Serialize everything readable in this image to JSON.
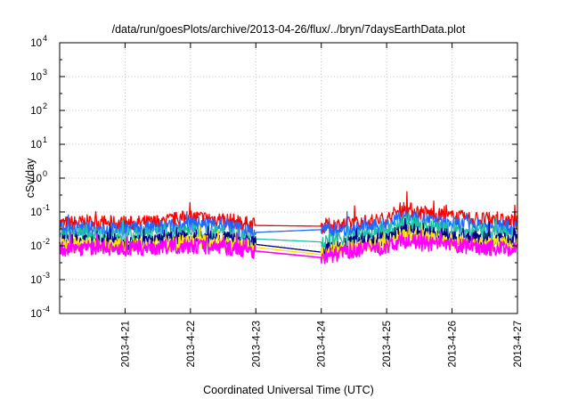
{
  "chart_data": {
    "type": "line",
    "title": "/data/run/goesPlots/archive/2013-04-26/flux/../bryn/7daysEarthData.plot",
    "xlabel": "Coordinated Universal Time (UTC)",
    "ylabel": "cSv/day",
    "x_scale": "time",
    "y_scale": "log",
    "xlim": [
      "2013-04-20T00:00",
      "2013-04-27T00:00"
    ],
    "ylim": [
      0.0001,
      10000
    ],
    "x_ticks": [
      {
        "value": "2013-04-21T00:00",
        "label": "2013-4-21"
      },
      {
        "value": "2013-04-22T00:00",
        "label": "2013-4-22"
      },
      {
        "value": "2013-04-23T00:00",
        "label": "2013-4-23"
      },
      {
        "value": "2013-04-24T00:00",
        "label": "2013-4-24"
      },
      {
        "value": "2013-04-25T00:00",
        "label": "2013-4-25"
      },
      {
        "value": "2013-04-26T00:00",
        "label": "2013-4-26"
      },
      {
        "value": "2013-04-27T00:00",
        "label": "2013-4-27"
      }
    ],
    "y_ticks": [
      {
        "value": 0.0001,
        "base": "10",
        "exp": "-4"
      },
      {
        "value": 0.001,
        "base": "10",
        "exp": "-3"
      },
      {
        "value": 0.01,
        "base": "10",
        "exp": "-2"
      },
      {
        "value": 0.1,
        "base": "10",
        "exp": "-1"
      },
      {
        "value": 1,
        "base": "10",
        "exp": "0"
      },
      {
        "value": 10,
        "base": "10",
        "exp": "1"
      },
      {
        "value": 100,
        "base": "10",
        "exp": "2"
      },
      {
        "value": 1000,
        "base": "10",
        "exp": "3"
      },
      {
        "value": 10000,
        "base": "10",
        "exp": "4"
      }
    ],
    "grid": true,
    "legend": "none",
    "data_gap": {
      "start": "2013-04-23T00:00",
      "end": "2013-04-24T00:00"
    },
    "series": [
      {
        "color": "#ff0000",
        "x": [
          "2013-04-20T00:00",
          "2013-04-20T12:00",
          "2013-04-21T00:00",
          "2013-04-21T12:00",
          "2013-04-22T00:00",
          "2013-04-22T12:00",
          "2013-04-23T00:00",
          "2013-04-24T00:00",
          "2013-04-24T12:00",
          "2013-04-25T00:00",
          "2013-04-25T06:00",
          "2013-04-25T12:00",
          "2013-04-26T00:00",
          "2013-04-26T12:00",
          "2013-04-27T00:00"
        ],
        "y": [
          0.045,
          0.05,
          0.045,
          0.05,
          0.07,
          0.06,
          0.04,
          0.038,
          0.045,
          0.06,
          0.13,
          0.1,
          0.07,
          0.06,
          0.05
        ]
      },
      {
        "color": "#1e6aff",
        "x": [
          "2013-04-20T00:00",
          "2013-04-20T12:00",
          "2013-04-21T00:00",
          "2013-04-21T12:00",
          "2013-04-22T00:00",
          "2013-04-22T12:00",
          "2013-04-23T00:00",
          "2013-04-24T00:00",
          "2013-04-24T12:00",
          "2013-04-25T00:00",
          "2013-04-25T06:00",
          "2013-04-25T12:00",
          "2013-04-26T00:00",
          "2013-04-26T12:00",
          "2013-04-27T00:00"
        ],
        "y": [
          0.03,
          0.032,
          0.03,
          0.033,
          0.045,
          0.04,
          0.025,
          0.03,
          0.03,
          0.04,
          0.08,
          0.06,
          0.045,
          0.04,
          0.033
        ]
      },
      {
        "color": "#20c0a0",
        "x": [
          "2013-04-20T00:00",
          "2013-04-20T12:00",
          "2013-04-21T00:00",
          "2013-04-21T12:00",
          "2013-04-22T00:00",
          "2013-04-22T12:00",
          "2013-04-23T00:00",
          "2013-04-24T00:00",
          "2013-04-24T12:00",
          "2013-04-25T00:00",
          "2013-04-25T06:00",
          "2013-04-25T12:00",
          "2013-04-26T00:00",
          "2013-04-26T12:00",
          "2013-04-27T00:00"
        ],
        "y": [
          0.02,
          0.022,
          0.02,
          0.022,
          0.028,
          0.025,
          0.016,
          0.013,
          0.018,
          0.025,
          0.05,
          0.04,
          0.028,
          0.025,
          0.022
        ]
      },
      {
        "color": "#000080",
        "x": [
          "2013-04-20T00:00",
          "2013-04-20T12:00",
          "2013-04-21T00:00",
          "2013-04-21T12:00",
          "2013-04-22T00:00",
          "2013-04-22T12:00",
          "2013-04-23T00:00",
          "2013-04-24T00:00",
          "2013-04-24T12:00",
          "2013-04-25T00:00",
          "2013-04-25T06:00",
          "2013-04-25T12:00",
          "2013-04-26T00:00",
          "2013-04-26T12:00",
          "2013-04-27T00:00"
        ],
        "y": [
          0.013,
          0.014,
          0.013,
          0.014,
          0.018,
          0.016,
          0.011,
          0.0065,
          0.012,
          0.016,
          0.03,
          0.025,
          0.018,
          0.016,
          0.014
        ]
      },
      {
        "color": "#ffe000",
        "x": [
          "2013-04-20T00:00",
          "2013-04-20T12:00",
          "2013-04-21T00:00",
          "2013-04-21T12:00",
          "2013-04-22T00:00",
          "2013-04-22T12:00",
          "2013-04-23T00:00",
          "2013-04-24T00:00",
          "2013-04-24T12:00",
          "2013-04-25T00:00",
          "2013-04-25T06:00",
          "2013-04-25T12:00",
          "2013-04-26T00:00",
          "2013-04-26T12:00",
          "2013-04-27T00:00"
        ],
        "y": [
          0.01,
          0.011,
          0.01,
          0.011,
          0.014,
          0.012,
          0.009,
          0.0055,
          0.0095,
          0.012,
          0.022,
          0.018,
          0.013,
          0.012,
          0.011
        ]
      },
      {
        "color": "#ff00ff",
        "x": [
          "2013-04-20T00:00",
          "2013-04-20T12:00",
          "2013-04-21T00:00",
          "2013-04-21T12:00",
          "2013-04-22T00:00",
          "2013-04-22T12:00",
          "2013-04-23T00:00",
          "2013-04-24T00:00",
          "2013-04-24T12:00",
          "2013-04-25T00:00",
          "2013-04-25T06:00",
          "2013-04-25T12:00",
          "2013-04-26T00:00",
          "2013-04-26T12:00",
          "2013-04-27T00:00"
        ],
        "y": [
          0.008,
          0.009,
          0.008,
          0.009,
          0.01,
          0.009,
          0.007,
          0.0045,
          0.0075,
          0.009,
          0.015,
          0.012,
          0.01,
          0.009,
          0.008
        ]
      }
    ]
  }
}
